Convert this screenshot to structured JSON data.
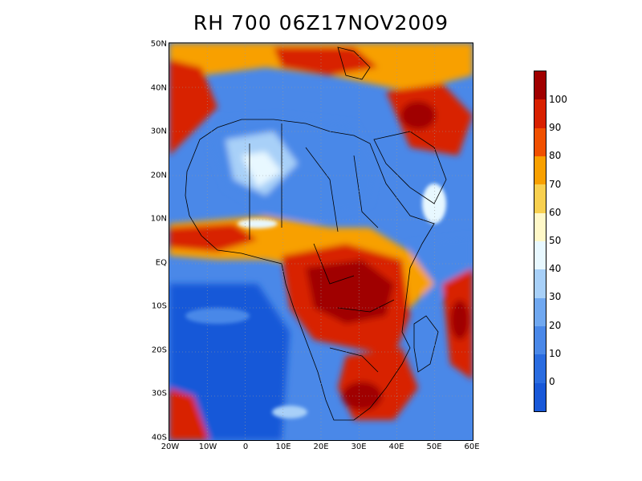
{
  "title": "RH 700 06Z17NOV2009",
  "lat_ticks": [
    "50N",
    "40N",
    "30N",
    "20N",
    "10N",
    "EQ",
    "10S",
    "20S",
    "30S",
    "40S"
  ],
  "lon_ticks": [
    "20W",
    "10W",
    "0",
    "10E",
    "20E",
    "30E",
    "40E",
    "50E",
    "60E"
  ],
  "colorbar": {
    "labels": [
      "100",
      "90",
      "80",
      "70",
      "60",
      "50",
      "40",
      "30",
      "20",
      "10",
      "0"
    ],
    "colors": [
      "#a00000",
      "#d82000",
      "#f05000",
      "#f8a000",
      "#f8d050",
      "#fff8c8",
      "#e8f8ff",
      "#a8d0f8",
      "#70a8f0",
      "#4a88e8",
      "#2a6ce0",
      "#1858d8"
    ]
  },
  "map": {
    "variable": "RH",
    "level": "700",
    "time": "06Z17NOV2009",
    "lat_range": [
      -40,
      50
    ],
    "lon_range": [
      -20,
      60
    ],
    "colors": {
      "very_dry": "#1858d8",
      "dry": "#4a88e8",
      "moderate": "#a8d0f8",
      "neutral": "#e8f8ff",
      "humid": "#f8a000",
      "very_humid": "#d82000",
      "saturated": "#a00000"
    }
  }
}
